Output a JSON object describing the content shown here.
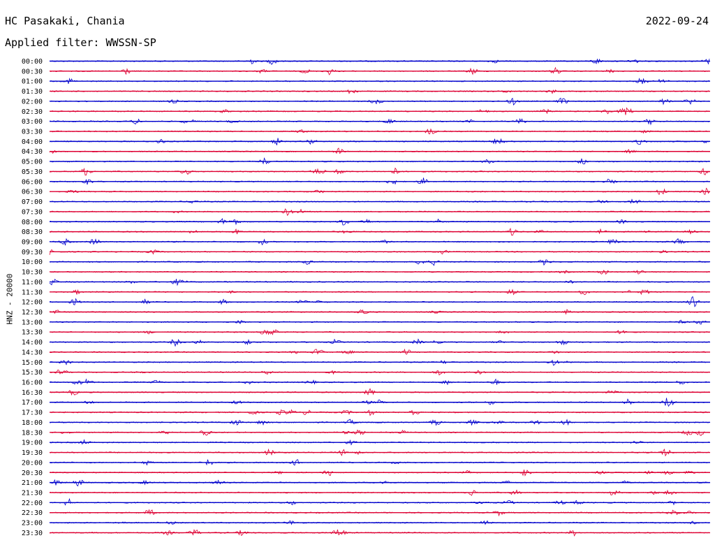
{
  "header": {
    "station": "HC Pasakaki, Chania",
    "filter": "Applied filter: WWSSN-SP",
    "date": "2022-09-24"
  },
  "channel_label": "HNZ - 20000",
  "colors": {
    "even_hour": "#0000cc",
    "odd_hour": "#dd0033"
  },
  "time_labels": [
    "00:00",
    "00:30",
    "01:00",
    "01:30",
    "02:00",
    "02:30",
    "03:00",
    "03:30",
    "04:00",
    "04:30",
    "05:00",
    "05:30",
    "06:00",
    "06:30",
    "07:00",
    "07:30",
    "08:00",
    "08:30",
    "09:00",
    "09:30",
    "10:00",
    "10:30",
    "11:00",
    "11:30",
    "12:00",
    "12:30",
    "13:00",
    "13:30",
    "14:00",
    "14:30",
    "15:00",
    "15:30",
    "16:00",
    "16:30",
    "17:00",
    "17:30",
    "18:00",
    "18:30",
    "19:00",
    "19:30",
    "20:00",
    "20:30",
    "21:00",
    "21:30",
    "22:00",
    "22:30",
    "23:00",
    "23:30"
  ]
}
